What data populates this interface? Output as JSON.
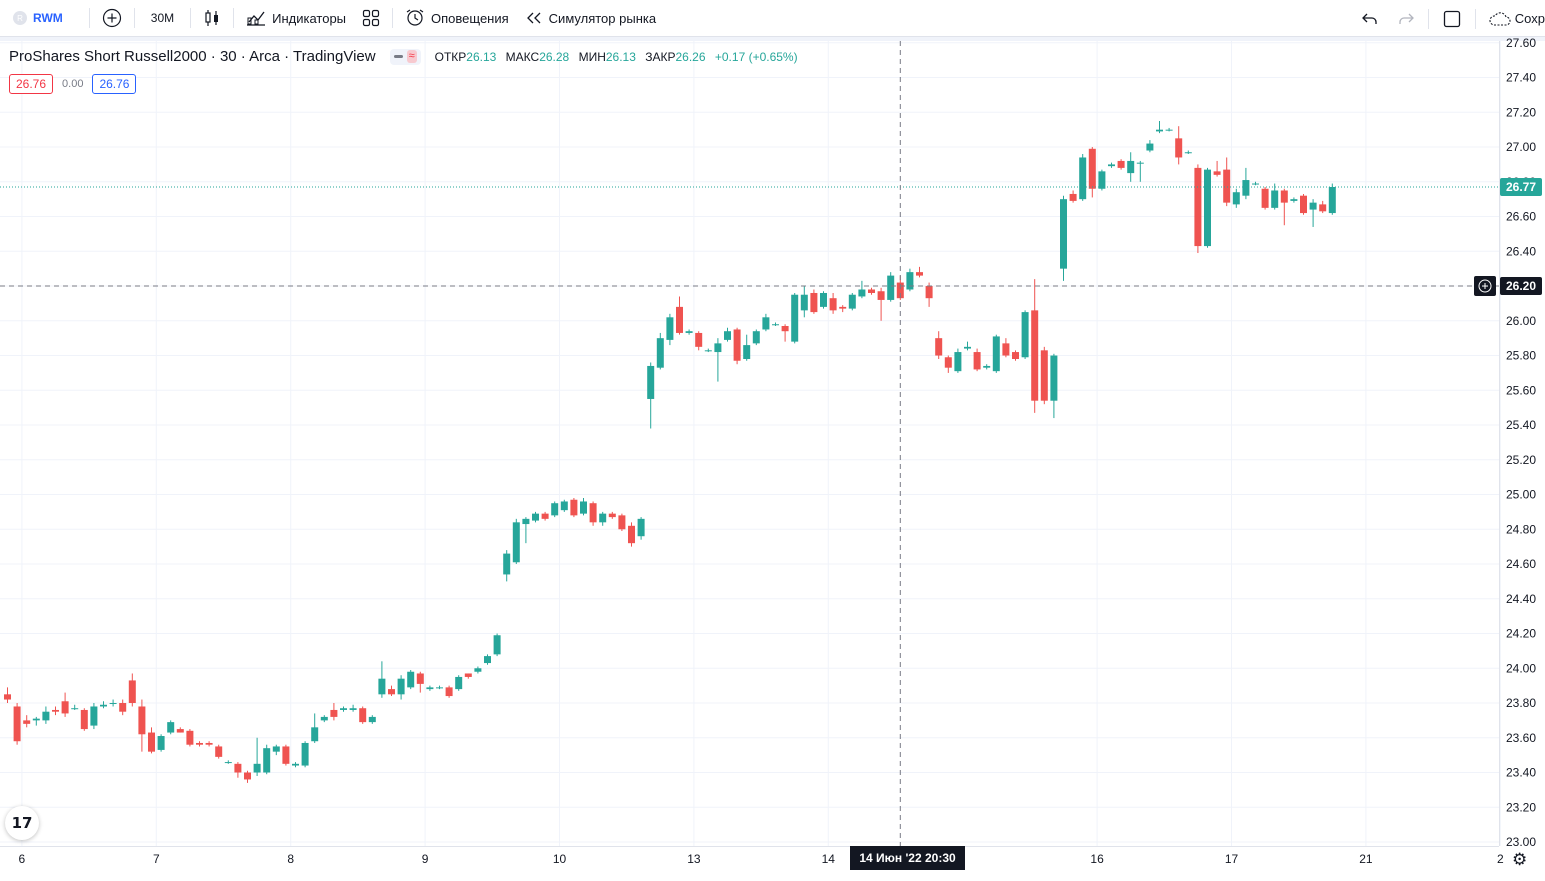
{
  "toolbar": {
    "symbol": "RWM",
    "interval": "30M",
    "indicators": "Индикаторы",
    "alerts": "Оповещения",
    "replay": "Симулятор рынка",
    "save": "Сохр"
  },
  "legend": {
    "title": "ProShares Short Russell2000 · 30 · Arca · TradingView",
    "open_label": "ОТКР",
    "open": "26.13",
    "high_label": "МАКС",
    "high": "26.28",
    "low_label": "МИН",
    "low": "26.13",
    "close_label": "ЗАКР",
    "close": "26.26",
    "change": "+0.17 (+0.65%)",
    "bid": "26.76",
    "spread": "0.00",
    "ask": "26.76"
  },
  "crosshair": {
    "price": "26.20",
    "time": "14 Июн '22   20:30"
  },
  "last_price": "26.77",
  "colors": {
    "up": "#26a69a",
    "down": "#ef5350",
    "grid": "#f0f3fa",
    "accent": "#2962ff"
  },
  "chart_data": {
    "type": "candlestick",
    "ylim": [
      23.0,
      27.6
    ],
    "y_ticks": [
      "23.00",
      "23.20",
      "23.40",
      "23.60",
      "23.80",
      "24.00",
      "24.20",
      "24.40",
      "24.60",
      "24.80",
      "25.00",
      "25.20",
      "25.40",
      "25.60",
      "25.80",
      "26.00",
      "26.20",
      "26.40",
      "26.60",
      "26.80",
      "27.00",
      "27.20",
      "27.40",
      "27.60"
    ],
    "x_tick_labels": [
      "6",
      "7",
      "8",
      "9",
      "10",
      "13",
      "14",
      "16",
      "17",
      "21",
      "2"
    ],
    "x_tick_index": [
      1.5,
      15.5,
      29.5,
      43.5,
      57.5,
      71.5,
      85.5,
      113.5,
      127.5,
      141.5,
      155.5
    ],
    "candles": [
      [
        23.85,
        23.82,
        23.89,
        23.8
      ],
      [
        23.78,
        23.58,
        23.8,
        23.56
      ],
      [
        23.7,
        23.68,
        23.73,
        23.66
      ],
      [
        23.7,
        23.71,
        23.72,
        23.67
      ],
      [
        23.7,
        23.75,
        23.78,
        23.68
      ],
      [
        23.76,
        23.75,
        23.78,
        23.73
      ],
      [
        23.81,
        23.74,
        23.86,
        23.72
      ],
      [
        23.77,
        23.77,
        23.79,
        23.76
      ],
      [
        23.76,
        23.65,
        23.77,
        23.64
      ],
      [
        23.67,
        23.78,
        23.8,
        23.65
      ],
      [
        23.78,
        23.79,
        23.81,
        23.77
      ],
      [
        23.8,
        23.8,
        23.82,
        23.78
      ],
      [
        23.8,
        23.75,
        23.82,
        23.73
      ],
      [
        23.93,
        23.8,
        23.97,
        23.78
      ],
      [
        23.78,
        23.62,
        23.82,
        23.52
      ],
      [
        23.63,
        23.52,
        23.66,
        23.51
      ],
      [
        23.53,
        23.61,
        23.62,
        23.52
      ],
      [
        23.63,
        23.69,
        23.7,
        23.62
      ],
      [
        23.65,
        23.63,
        23.66,
        23.63
      ],
      [
        23.64,
        23.56,
        23.65,
        23.55
      ],
      [
        23.57,
        23.56,
        23.58,
        23.55
      ],
      [
        23.57,
        23.56,
        23.58,
        23.55
      ],
      [
        23.55,
        23.49,
        23.56,
        23.48
      ],
      [
        23.46,
        23.46,
        23.47,
        23.45
      ],
      [
        23.45,
        23.4,
        23.46,
        23.37
      ],
      [
        23.4,
        23.36,
        23.41,
        23.34
      ],
      [
        23.4,
        23.45,
        23.6,
        23.38
      ],
      [
        23.4,
        23.54,
        23.56,
        23.39
      ],
      [
        23.52,
        23.55,
        23.56,
        23.5
      ],
      [
        23.55,
        23.45,
        23.56,
        23.44
      ],
      [
        23.44,
        23.45,
        23.46,
        23.43
      ],
      [
        23.44,
        23.57,
        23.58,
        23.43
      ],
      [
        23.58,
        23.66,
        23.74,
        23.57
      ],
      [
        23.7,
        23.72,
        23.73,
        23.69
      ],
      [
        23.76,
        23.72,
        23.8,
        23.7
      ],
      [
        23.76,
        23.77,
        23.78,
        23.75
      ],
      [
        23.76,
        23.77,
        23.79,
        23.75
      ],
      [
        23.77,
        23.69,
        23.78,
        23.68
      ],
      [
        23.69,
        23.72,
        23.73,
        23.68
      ],
      [
        23.85,
        23.94,
        24.04,
        23.83
      ],
      [
        23.88,
        23.85,
        23.9,
        23.84
      ],
      [
        23.85,
        23.94,
        23.96,
        23.82
      ],
      [
        23.89,
        23.98,
        23.99,
        23.88
      ],
      [
        23.97,
        23.91,
        23.98,
        23.86
      ],
      [
        23.88,
        23.89,
        23.9,
        23.87
      ],
      [
        23.89,
        23.89,
        23.9,
        23.88
      ],
      [
        23.89,
        23.84,
        23.9,
        23.83
      ],
      [
        23.88,
        23.95,
        23.96,
        23.87
      ],
      [
        23.97,
        23.95,
        23.97,
        23.94
      ],
      [
        23.98,
        24.0,
        24.01,
        23.97
      ],
      [
        24.03,
        24.07,
        24.08,
        24.02
      ],
      [
        24.08,
        24.19,
        24.2,
        24.07
      ],
      [
        24.54,
        24.66,
        24.68,
        24.5
      ],
      [
        24.61,
        24.84,
        24.86,
        24.6
      ],
      [
        24.83,
        24.86,
        24.87,
        24.72
      ],
      [
        24.85,
        24.89,
        24.9,
        24.84
      ],
      [
        24.89,
        24.86,
        24.9,
        24.85
      ],
      [
        24.88,
        24.95,
        24.96,
        24.87
      ],
      [
        24.91,
        24.96,
        24.97,
        24.9
      ],
      [
        24.97,
        24.88,
        24.98,
        24.87
      ],
      [
        24.89,
        24.96,
        24.98,
        24.88
      ],
      [
        24.95,
        24.84,
        24.96,
        24.82
      ],
      [
        24.84,
        24.89,
        24.9,
        24.82
      ],
      [
        24.89,
        24.87,
        24.9,
        24.86
      ],
      [
        24.88,
        24.8,
        24.89,
        24.79
      ],
      [
        24.82,
        24.72,
        24.84,
        24.7
      ],
      [
        24.76,
        24.86,
        24.87,
        24.74
      ],
      [
        25.55,
        25.74,
        25.76,
        25.38
      ],
      [
        25.73,
        25.9,
        25.93,
        25.72
      ],
      [
        25.89,
        26.02,
        26.04,
        25.86
      ],
      [
        26.08,
        25.93,
        26.14,
        25.92
      ],
      [
        25.93,
        25.94,
        25.95,
        25.92
      ],
      [
        25.93,
        25.85,
        25.94,
        25.83
      ],
      [
        25.83,
        25.83,
        25.84,
        25.82
      ],
      [
        25.82,
        25.87,
        25.9,
        25.65
      ],
      [
        25.89,
        25.94,
        25.96,
        25.88
      ],
      [
        25.95,
        25.77,
        25.96,
        25.75
      ],
      [
        25.78,
        25.86,
        25.92,
        25.77
      ],
      [
        25.87,
        25.94,
        25.95,
        25.86
      ],
      [
        25.95,
        26.02,
        26.04,
        25.94
      ],
      [
        25.98,
        25.98,
        25.99,
        25.97
      ],
      [
        25.97,
        25.94,
        25.98,
        25.88
      ],
      [
        25.88,
        26.15,
        26.16,
        25.87
      ],
      [
        26.06,
        26.15,
        26.2,
        26.02
      ],
      [
        26.16,
        26.05,
        26.18,
        26.04
      ],
      [
        26.08,
        26.16,
        26.17,
        26.07
      ],
      [
        26.13,
        26.06,
        26.16,
        26.04
      ],
      [
        26.08,
        26.07,
        26.09,
        26.05
      ],
      [
        26.07,
        26.15,
        26.16,
        26.06
      ],
      [
        26.14,
        26.18,
        26.23,
        26.13
      ],
      [
        26.18,
        26.16,
        26.19,
        26.15
      ],
      [
        26.17,
        26.12,
        26.19,
        26.0
      ],
      [
        26.12,
        26.26,
        26.28,
        26.11
      ],
      [
        26.22,
        26.13,
        26.26,
        26.12
      ],
      [
        26.18,
        26.28,
        26.3,
        26.17
      ],
      [
        26.28,
        26.26,
        26.31,
        26.25
      ],
      [
        26.2,
        26.13,
        26.22,
        26.08
      ],
      [
        25.9,
        25.8,
        25.94,
        25.78
      ],
      [
        25.79,
        25.73,
        25.8,
        25.7
      ],
      [
        25.71,
        25.82,
        25.84,
        25.7
      ],
      [
        25.84,
        25.85,
        25.88,
        25.83
      ],
      [
        25.82,
        25.72,
        25.84,
        25.71
      ],
      [
        25.73,
        25.74,
        25.75,
        25.72
      ],
      [
        25.71,
        25.91,
        25.92,
        25.7
      ],
      [
        25.87,
        25.8,
        25.9,
        25.79
      ],
      [
        25.82,
        25.78,
        25.83,
        25.77
      ],
      [
        25.79,
        26.05,
        26.06,
        25.78
      ],
      [
        26.06,
        25.54,
        26.24,
        25.47
      ],
      [
        25.83,
        25.54,
        25.85,
        25.52
      ],
      [
        25.54,
        25.8,
        25.81,
        25.44
      ],
      [
        26.3,
        26.7,
        26.72,
        26.23
      ],
      [
        26.73,
        26.69,
        26.75,
        26.68
      ],
      [
        26.7,
        26.94,
        26.96,
        26.69
      ],
      [
        26.99,
        26.76,
        27.0,
        26.71
      ],
      [
        26.76,
        26.86,
        26.87,
        26.75
      ],
      [
        26.89,
        26.9,
        26.91,
        26.88
      ],
      [
        26.92,
        26.88,
        26.93,
        26.87
      ],
      [
        26.85,
        26.92,
        26.97,
        26.8
      ],
      [
        26.91,
        26.91,
        26.92,
        26.8
      ],
      [
        26.98,
        27.02,
        27.04,
        26.97
      ],
      [
        27.09,
        27.1,
        27.15,
        27.08
      ],
      [
        27.1,
        27.1,
        27.11,
        27.09
      ],
      [
        27.05,
        26.94,
        27.12,
        26.9
      ],
      [
        26.97,
        26.97,
        26.98,
        26.96
      ],
      [
        26.88,
        26.43,
        26.9,
        26.39
      ],
      [
        26.43,
        26.87,
        26.88,
        26.42
      ],
      [
        26.86,
        26.84,
        26.92,
        26.83
      ],
      [
        26.87,
        26.68,
        26.94,
        26.66
      ],
      [
        26.67,
        26.74,
        26.76,
        26.65
      ],
      [
        26.72,
        26.81,
        26.88,
        26.7
      ],
      [
        26.79,
        26.79,
        26.8,
        26.78
      ],
      [
        26.76,
        26.65,
        26.77,
        26.64
      ],
      [
        26.65,
        26.75,
        26.79,
        26.64
      ],
      [
        26.75,
        26.68,
        26.76,
        26.55
      ],
      [
        26.69,
        26.7,
        26.71,
        26.68
      ],
      [
        26.72,
        26.62,
        26.73,
        26.61
      ],
      [
        26.64,
        26.68,
        26.7,
        26.54
      ],
      [
        26.67,
        26.63,
        26.69,
        26.62
      ],
      [
        26.62,
        26.77,
        26.79,
        26.61
      ]
    ]
  }
}
